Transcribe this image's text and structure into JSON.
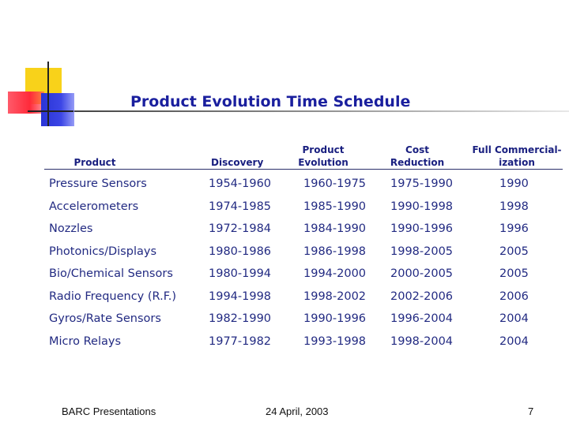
{
  "title": "Product Evolution Time Schedule",
  "table": {
    "headers": {
      "product": "Product",
      "discovery": "Discovery",
      "evolution_l1": "Product",
      "evolution_l2": "Evolution",
      "cost_l1": "Cost",
      "cost_l2": "Reduction",
      "commercial_l1": "Full Commercial-",
      "commercial_l2": "ization"
    },
    "rows": [
      [
        "Pressure  Sensors",
        "1954-1960",
        "1960-1975",
        "1975-1990",
        "1990"
      ],
      [
        "Accelerometers",
        "1974-1985",
        "1985-1990",
        "1990-1998",
        "1998"
      ],
      [
        "Nozzles",
        "1972-1984",
        "1984-1990",
        "1990-1996",
        "1996"
      ],
      [
        "Photonics/Displays",
        "1980-1986",
        "1986-1998",
        "1998-2005",
        "2005"
      ],
      [
        "Bio/Chemical Sensors",
        "1980-1994",
        "1994-2000",
        "2000-2005",
        "2005"
      ],
      [
        "Radio Frequency (R.F.)",
        "1994-1998",
        "1998-2002",
        "2002-2006",
        "2006"
      ],
      [
        "Gyros/Rate Sensors",
        "1982-1990",
        "1990-1996",
        "1996-2004",
        "2004"
      ],
      [
        "Micro Relays",
        "1977-1982",
        "1993-1998",
        "1998-2004",
        "2004"
      ]
    ]
  },
  "footer": {
    "left": "BARC Presentations",
    "center": "24 April, 2003",
    "page": "7"
  }
}
